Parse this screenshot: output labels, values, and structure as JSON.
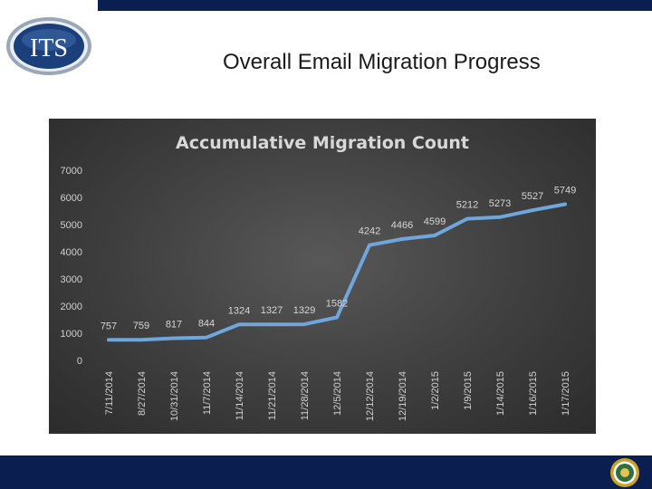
{
  "slide": {
    "title": "Overall Email Migration Progress",
    "logo_text": "ITS",
    "colors": {
      "band": "#0a1f4f",
      "line": "#6fa6dc",
      "panel": "#3e3e3e"
    }
  },
  "chart_data": {
    "type": "line",
    "title": "Accumulative Migration Count",
    "xlabel": "",
    "ylabel": "",
    "categories": [
      "7/11/2014",
      "8/27/2014",
      "10/31/2014",
      "11/7/2014",
      "11/14/2014",
      "11/21/2014",
      "11/28/2014",
      "12/5/2014",
      "12/12/2014",
      "12/19/2014",
      "1/2/2015",
      "1/9/2015",
      "1/14/2015",
      "1/16/2015",
      "1/17/2015"
    ],
    "series": [
      {
        "values": [
          757,
          759,
          817,
          844,
          1324,
          1327,
          1329,
          1582,
          4242,
          4466,
          4599,
          5212,
          5273,
          5527,
          5749
        ]
      }
    ],
    "ylim": [
      0,
      7000
    ],
    "yticks": [
      0,
      1000,
      2000,
      3000,
      4000,
      5000,
      6000,
      7000
    ],
    "grid": false,
    "legend": "none"
  }
}
